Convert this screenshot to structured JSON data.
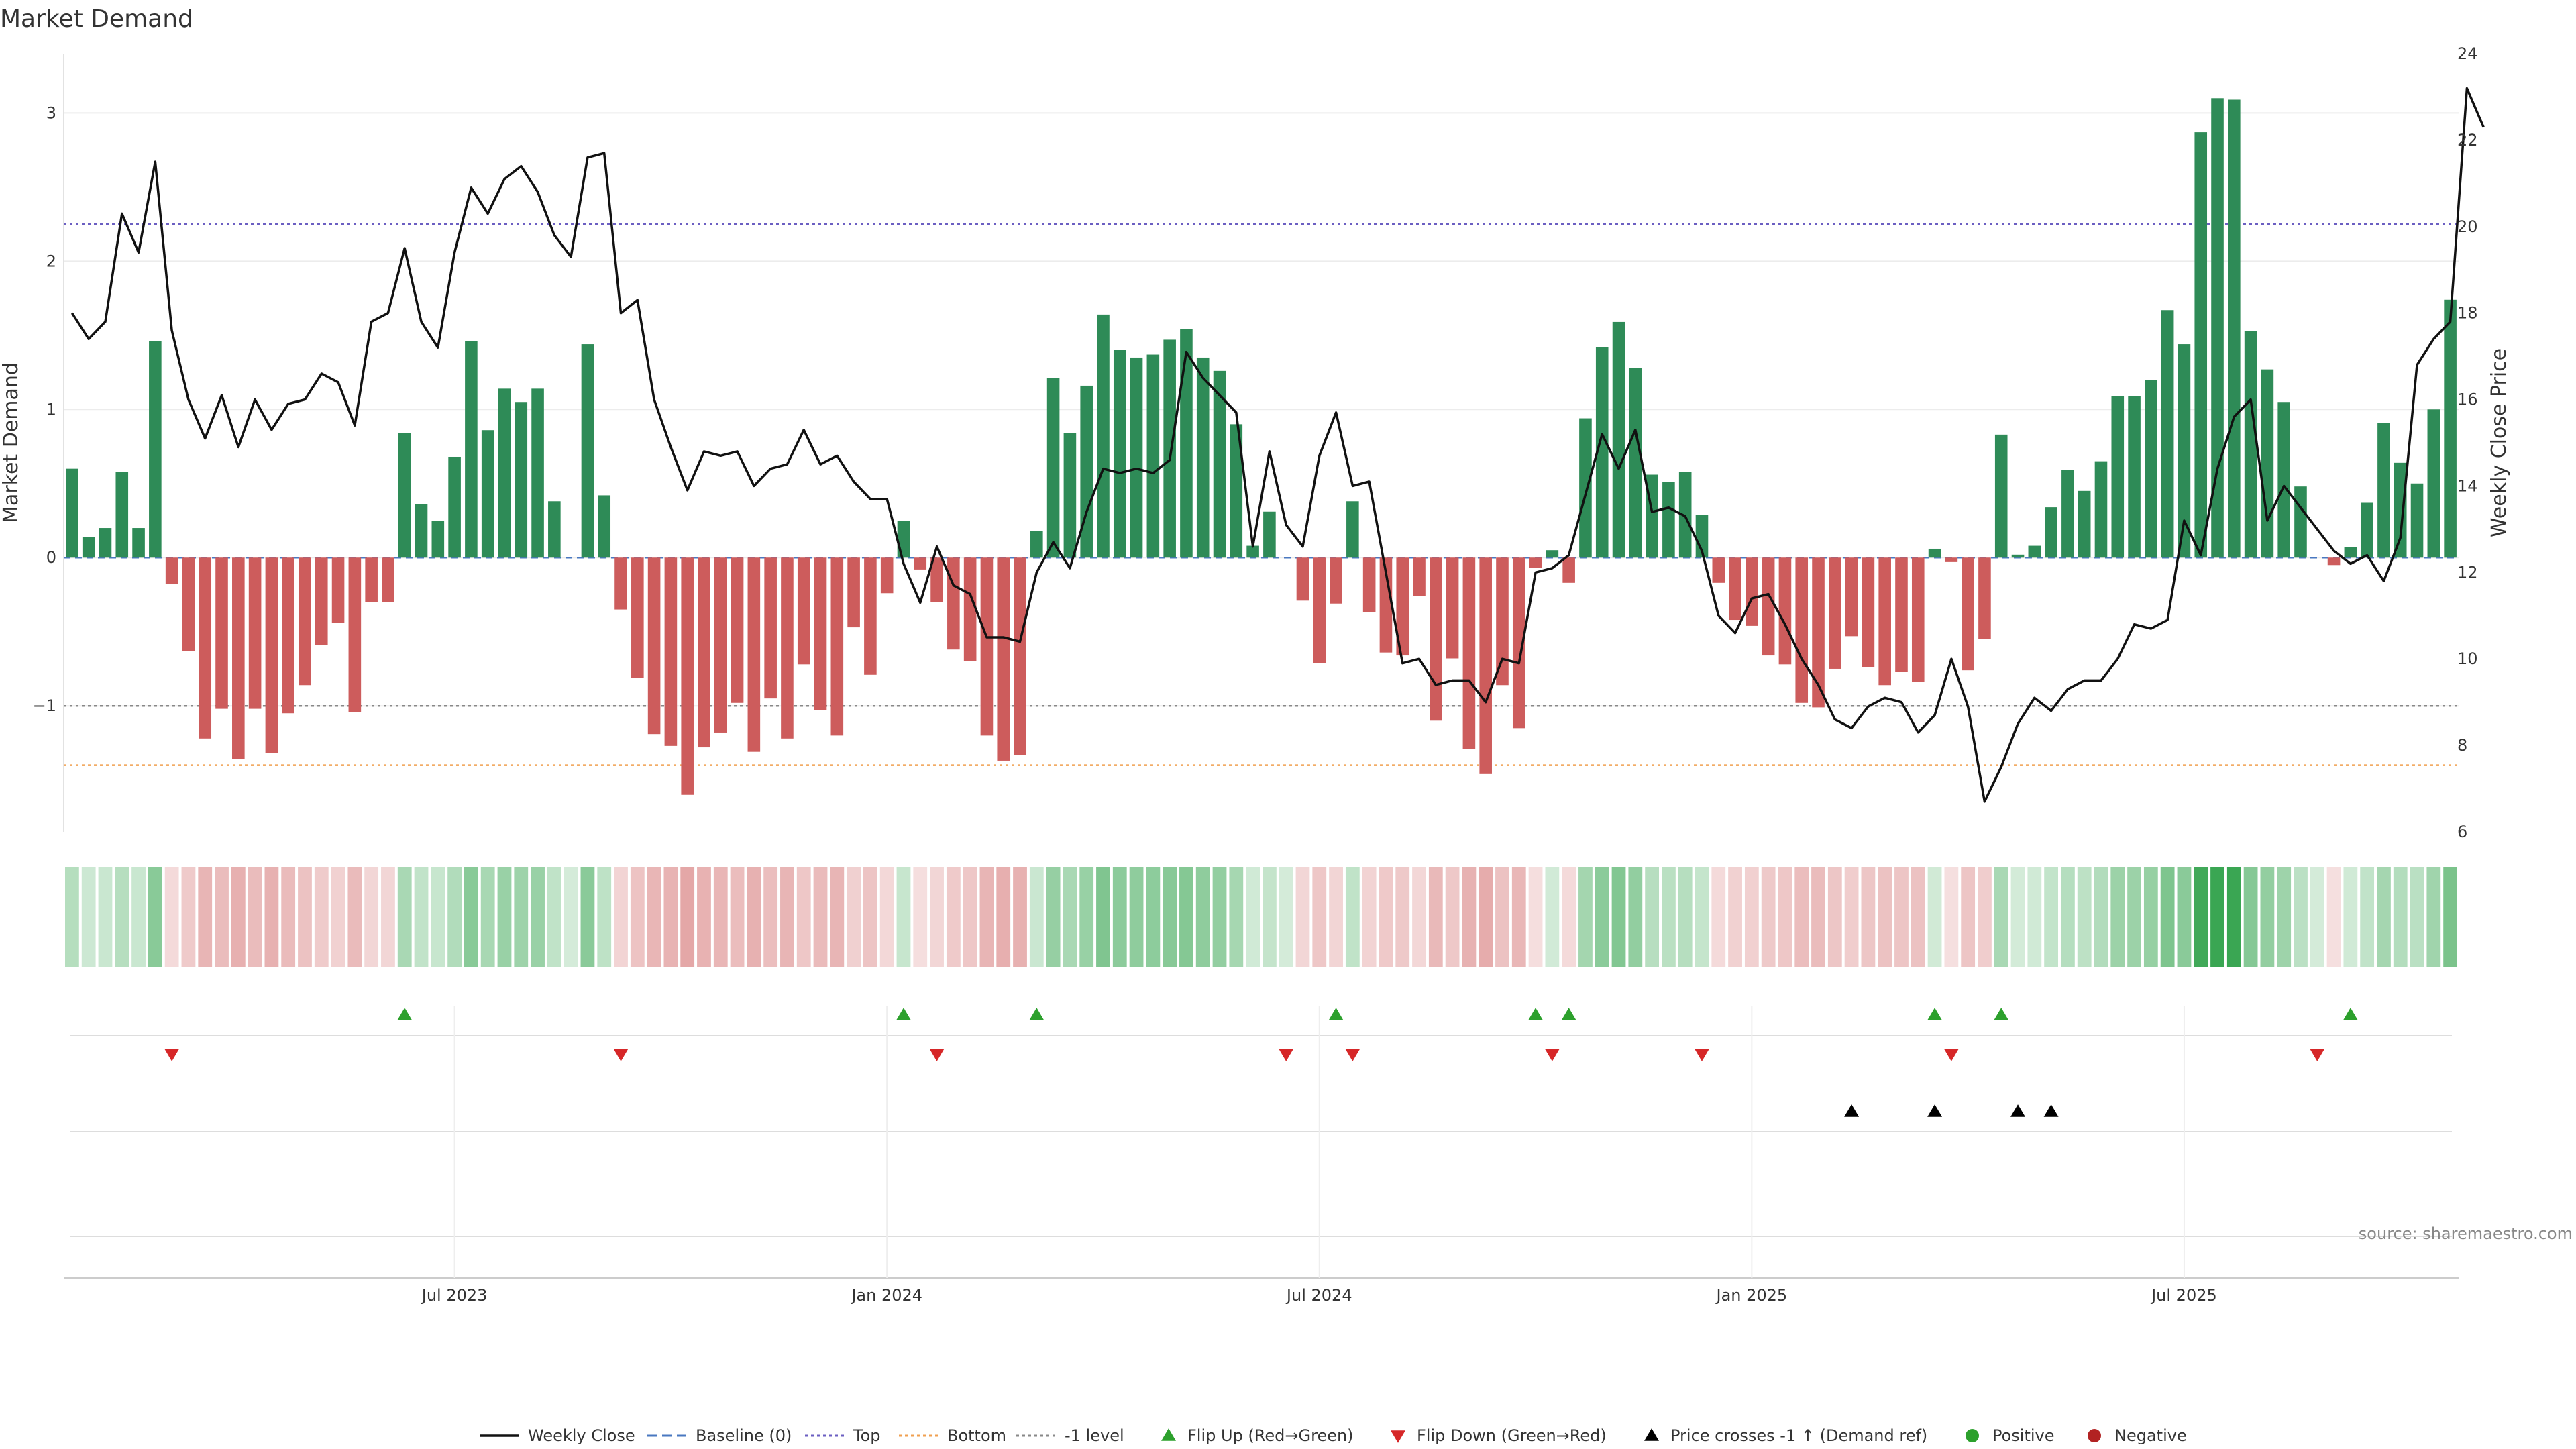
{
  "chart_data": {
    "type": "bar+line",
    "title": "Market Demand",
    "ylabel_left": "Market Demand",
    "ylabel_right": "Weekly Close Price",
    "ylim_left": [
      -1.85,
      3.4
    ],
    "ylim_right": [
      6,
      24
    ],
    "yticks_left": [
      3,
      2,
      1,
      0,
      -1
    ],
    "yticks_right": [
      24,
      22,
      20,
      18,
      16,
      14,
      12,
      10,
      8,
      6
    ],
    "ytick_labels_left": [
      "3",
      "2",
      "1",
      "0",
      "−1"
    ],
    "ytick_labels_right": [
      "24",
      "22",
      "20",
      "18",
      "16",
      "14",
      "12",
      "10",
      "8",
      "6"
    ],
    "xtick_labels": [
      "Jul 2023",
      "Jan 2024",
      "Jul 2024",
      "Jan 2025",
      "Jul 2025"
    ],
    "xtick_weeks": [
      23,
      49,
      75,
      101,
      127
    ],
    "reference_lines": {
      "top": 2.25,
      "bottom": -1.4,
      "minus_one": -1.0,
      "baseline": 0
    },
    "weeks": 144,
    "demand": [
      0.6,
      0.14,
      0.2,
      0.58,
      0.2,
      1.46,
      -0.18,
      -0.63,
      -1.22,
      -1.02,
      -1.36,
      -1.02,
      -1.32,
      -1.05,
      -0.86,
      -0.59,
      -0.44,
      -1.04,
      -0.3,
      -0.3,
      0.84,
      0.36,
      0.25,
      0.68,
      1.46,
      0.86,
      1.14,
      1.05,
      1.14,
      0.38,
      0.0,
      1.44,
      0.42,
      -0.35,
      -0.81,
      -1.19,
      -1.27,
      -1.6,
      -1.28,
      -1.18,
      -0.98,
      -1.31,
      -0.95,
      -1.22,
      -0.72,
      -1.03,
      -1.2,
      -0.47,
      -0.79,
      -0.24,
      0.25,
      -0.08,
      -0.3,
      -0.62,
      -0.7,
      -1.2,
      -1.37,
      -1.33,
      0.18,
      1.21,
      0.84,
      1.16,
      1.64,
      1.4,
      1.35,
      1.37,
      1.47,
      1.54,
      1.35,
      1.26,
      0.9,
      0.08,
      0.31,
      0.0,
      -0.29,
      -0.71,
      -0.31,
      0.38,
      -0.37,
      -0.64,
      -0.66,
      -0.26,
      -1.1,
      -0.68,
      -1.29,
      -1.46,
      -0.86,
      -1.15,
      -0.07,
      0.05,
      -0.17,
      0.94,
      1.42,
      1.59,
      1.28,
      0.56,
      0.51,
      0.58,
      0.29,
      -0.17,
      -0.42,
      -0.46,
      -0.66,
      -0.72,
      -0.98,
      -1.01,
      -0.75,
      -0.53,
      -0.74,
      -0.86,
      -0.77,
      -0.84,
      0.06,
      -0.03,
      -0.76,
      -0.55,
      0.83,
      0.02,
      0.08,
      0.34,
      0.59,
      0.45,
      0.65,
      1.09,
      1.09,
      1.2,
      1.67,
      1.44,
      2.87,
      3.1,
      3.09,
      1.53,
      1.27,
      1.05,
      0.48,
      0.0,
      -0.05,
      0.07,
      0.37,
      0.91,
      0.64,
      0.5,
      1.0,
      1.74
    ],
    "weekly_close": [
      18.0,
      17.4,
      17.8,
      20.3,
      19.4,
      21.5,
      17.6,
      16.0,
      15.1,
      16.1,
      14.9,
      16.0,
      15.3,
      15.9,
      16.0,
      16.6,
      16.4,
      15.4,
      17.8,
      18.0,
      19.5,
      17.8,
      17.2,
      19.4,
      20.9,
      20.3,
      21.1,
      21.4,
      20.8,
      19.8,
      19.3,
      21.6,
      21.7,
      18.0,
      18.3,
      16.0,
      14.9,
      13.9,
      14.8,
      14.7,
      14.8,
      14.0,
      14.4,
      14.5,
      15.3,
      14.5,
      14.7,
      14.1,
      13.7,
      13.7,
      12.2,
      11.3,
      12.6,
      11.7,
      11.5,
      10.5,
      10.5,
      10.4,
      12.0,
      12.7,
      12.1,
      13.4,
      14.4,
      14.3,
      14.4,
      14.3,
      14.6,
      17.1,
      16.5,
      16.1,
      15.7,
      12.6,
      14.8,
      13.1,
      12.6,
      14.7,
      15.7,
      14.0,
      14.1,
      12.0,
      9.9,
      10.0,
      9.4,
      9.5,
      9.5,
      9.0,
      10.0,
      9.9,
      12.0,
      12.1,
      12.4,
      13.8,
      15.2,
      14.4,
      15.3,
      13.4,
      13.5,
      13.3,
      12.5,
      11.0,
      10.6,
      11.4,
      11.5,
      10.8,
      10.0,
      9.4,
      8.6,
      8.4,
      8.9,
      9.1,
      9.0,
      8.3,
      8.7,
      10.0,
      8.9,
      6.7,
      7.5,
      8.5,
      9.1,
      8.8,
      9.3,
      9.5,
      9.5,
      10.0,
      10.8,
      10.7,
      10.9,
      13.2,
      12.4,
      14.4,
      15.6,
      16.0,
      13.2,
      14.0,
      13.5,
      13.0,
      12.5,
      12.2,
      12.4,
      11.8,
      12.8,
      16.8,
      17.4,
      17.8,
      23.2,
      22.3
    ],
    "flip_up_weeks": [
      20,
      50,
      58,
      76,
      88,
      90,
      112,
      116,
      137
    ],
    "flip_down_weeks": [
      6,
      33,
      52,
      73,
      77,
      89,
      98,
      113,
      135
    ],
    "price_cross_weeks": [
      107,
      112,
      117,
      119
    ],
    "legend": [
      "Weekly Close",
      "Baseline (0)",
      "Top",
      "Bottom",
      "-1 level",
      "Flip Up (Red→Green)",
      "Flip Down (Green→Red)",
      "Price crosses -1 ↑ (Demand ref)",
      "Positive",
      "Negative"
    ],
    "source": "source: sharemaestro.com"
  },
  "colors": {
    "positive": "#2e8b57",
    "negative": "#cd5c5c",
    "price": "#111111",
    "top": "#6b5fc2",
    "bottom": "#f0a050",
    "minus_one": "#888888",
    "baseline": "#4a78c0",
    "flip_up": "#2ca02c",
    "flip_down": "#d62728",
    "cross": "#000000",
    "legend_positive": "#2ca02c",
    "legend_negative": "#b22222"
  }
}
